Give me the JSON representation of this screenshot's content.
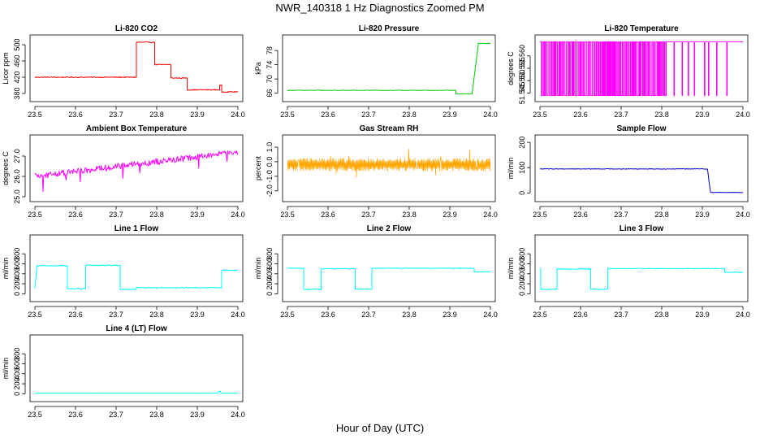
{
  "title": "NWR_140318  1 Hz Diagnostics Zoomed PM",
  "xlabel": "Hour of Day (UTC)",
  "chart_data": [
    {
      "type": "line",
      "title": "Li-820 CO2",
      "ylabel": "Licor ppm",
      "color": "#ff0000",
      "xlim": [
        23.5,
        24.0
      ],
      "ylim": [
        372,
        512
      ],
      "yticks": [
        "380",
        "420",
        "460",
        "500"
      ],
      "xticks": [
        "23.5",
        "23.6",
        "23.7",
        "23.8",
        "23.9",
        "24.0"
      ],
      "series": [
        {
          "noise": 1.2,
          "segments": [
            {
              "x0": 23.5,
              "x1": 23.75,
              "y0": 420,
              "y1": 420
            },
            {
              "x0": 23.75,
              "x1": 23.795,
              "y0": 506,
              "y1": 506
            },
            {
              "x0": 23.795,
              "x1": 23.835,
              "y0": 451,
              "y1": 451
            },
            {
              "x0": 23.835,
              "x1": 23.875,
              "y0": 418,
              "y1": 418
            },
            {
              "x0": 23.875,
              "x1": 23.955,
              "y0": 389,
              "y1": 389
            },
            {
              "x0": 23.955,
              "x1": 23.96,
              "y0": 400,
              "y1": 400
            },
            {
              "x0": 23.96,
              "x1": 24.0,
              "y0": 384,
              "y1": 384
            }
          ]
        }
      ]
    },
    {
      "type": "line",
      "title": "Li-820 Pressure",
      "ylabel": "kPa",
      "color": "#00cc00",
      "xlim": [
        23.5,
        24.0
      ],
      "ylim": [
        65,
        81
      ],
      "yticks": [
        "66",
        "70",
        "74",
        "78"
      ],
      "xticks": [
        "23.5",
        "23.6",
        "23.7",
        "23.8",
        "23.9",
        "24.0"
      ],
      "series": [
        {
          "noise": 0.08,
          "segments": [
            {
              "x0": 23.5,
              "x1": 23.915,
              "y0": 66.8,
              "y1": 66.8
            },
            {
              "x0": 23.915,
              "x1": 23.955,
              "y0": 65.8,
              "y1": 65.8
            },
            {
              "x0": 23.955,
              "x1": 23.97,
              "y0": 66,
              "y1": 79.5
            },
            {
              "x0": 23.97,
              "x1": 24.0,
              "y0": 80,
              "y1": 80
            }
          ]
        }
      ]
    },
    {
      "type": "line",
      "title": "Li-820 Temperature",
      "ylabel": "degrees C",
      "color": "#ff00ff",
      "xlim": [
        23.5,
        24.0
      ],
      "ylim": [
        51.5435,
        51.5665
      ],
      "yticks": [
        "51.545",
        "51.550",
        "51.555",
        "51.560"
      ],
      "xticks": [
        "23.5",
        "23.6",
        "23.7",
        "23.8",
        "23.9",
        "24.0"
      ],
      "series": [
        {
          "mode": "toggle",
          "low": 51.544,
          "high": 51.5657,
          "dense_until": 23.81,
          "spikes": [
            23.83,
            23.85,
            23.865,
            23.88,
            23.905,
            23.915,
            23.935,
            23.96
          ],
          "final": 51.5657
        }
      ]
    },
    {
      "type": "line",
      "title": "Ambient Box Temperature",
      "ylabel": "degrees C",
      "color": "#ff00ff",
      "xlim": [
        23.5,
        24.0
      ],
      "ylim": [
        25.0,
        27.8
      ],
      "yticks": [
        "25.0",
        "26.0",
        "27.0"
      ],
      "xticks": [
        "23.5",
        "23.6",
        "23.7",
        "23.8",
        "23.9",
        "24.0"
      ],
      "series": [
        {
          "noise": 0.15,
          "spike_down": 0.45,
          "segments": [
            {
              "x0": 23.5,
              "x1": 24.0,
              "y0": 26.0,
              "y1": 27.2
            }
          ]
        }
      ]
    },
    {
      "type": "line",
      "title": "Gas Stream RH",
      "ylabel": "percent",
      "color": "#ffa500",
      "xlim": [
        23.5,
        24.0
      ],
      "ylim": [
        -2.4,
        1.5
      ],
      "yticks": [
        "-2.0",
        "-1.0",
        "0.0",
        "1.0"
      ],
      "xticks": [
        "23.5",
        "23.6",
        "23.7",
        "23.8",
        "23.9",
        "24.0"
      ],
      "series": [
        {
          "noise": 0.45,
          "pattern": "hatch",
          "segments": [
            {
              "x0": 23.5,
              "x1": 24.0,
              "y0": -0.2,
              "y1": -0.2
            }
          ]
        }
      ]
    },
    {
      "type": "line",
      "title": "Sample Flow",
      "ylabel": "ml/min",
      "color": "#0000cc",
      "xlim": [
        23.5,
        24.0
      ],
      "ylim": [
        -15,
        210
      ],
      "yticks": [
        "0",
        "100",
        "200"
      ],
      "xticks": [
        "23.5",
        "23.6",
        "23.7",
        "23.8",
        "23.9",
        "24.0"
      ],
      "series": [
        {
          "noise": 1.2,
          "segments": [
            {
              "x0": 23.5,
              "x1": 23.913,
              "y0": 95,
              "y1": 95
            },
            {
              "x0": 23.913,
              "x1": 23.92,
              "y0": 90,
              "y1": 3
            },
            {
              "x0": 23.92,
              "x1": 24.0,
              "y0": 2,
              "y1": 2
            }
          ]
        }
      ]
    },
    {
      "type": "line",
      "title": "Line 1 Flow",
      "ylabel": "ml/min",
      "color": "#00ffff",
      "xlim": [
        23.5,
        24.0
      ],
      "ylim": [
        -60,
        1080
      ],
      "yticks": [
        "0",
        "200",
        "400",
        "600",
        "800"
      ],
      "xticks": [
        "23.5",
        "23.6",
        "23.7",
        "23.8",
        "23.9",
        "24.0"
      ],
      "series": [
        {
          "noise": 10,
          "segments": [
            {
              "x0": 23.5,
              "x1": 23.505,
              "y0": 100,
              "y1": 560
            },
            {
              "x0": 23.505,
              "x1": 23.58,
              "y0": 560,
              "y1": 560
            },
            {
              "x0": 23.58,
              "x1": 23.625,
              "y0": 100,
              "y1": 100
            },
            {
              "x0": 23.625,
              "x1": 23.71,
              "y0": 570,
              "y1": 570
            },
            {
              "x0": 23.71,
              "x1": 23.75,
              "y0": 90,
              "y1": 90
            },
            {
              "x0": 23.75,
              "x1": 23.96,
              "y0": 120,
              "y1": 120
            },
            {
              "x0": 23.96,
              "x1": 24.0,
              "y0": 470,
              "y1": 470
            }
          ]
        }
      ]
    },
    {
      "type": "line",
      "title": "Line 2 Flow",
      "ylabel": "ml/min",
      "color": "#00ffff",
      "xlim": [
        23.5,
        24.0
      ],
      "ylim": [
        -60,
        1080
      ],
      "yticks": [
        "0",
        "200",
        "400",
        "600",
        "800"
      ],
      "xticks": [
        "23.5",
        "23.6",
        "23.7",
        "23.8",
        "23.9",
        "24.0"
      ],
      "series": [
        {
          "noise": 9,
          "segments": [
            {
              "x0": 23.5,
              "x1": 23.54,
              "y0": 510,
              "y1": 510
            },
            {
              "x0": 23.54,
              "x1": 23.583,
              "y0": 90,
              "y1": 90
            },
            {
              "x0": 23.583,
              "x1": 23.667,
              "y0": 500,
              "y1": 500
            },
            {
              "x0": 23.667,
              "x1": 23.708,
              "y0": 90,
              "y1": 90
            },
            {
              "x0": 23.708,
              "x1": 23.96,
              "y0": 510,
              "y1": 510
            },
            {
              "x0": 23.96,
              "x1": 24.0,
              "y0": 440,
              "y1": 440
            }
          ]
        }
      ]
    },
    {
      "type": "line",
      "title": "Line 3 Flow",
      "ylabel": "ml/min",
      "color": "#00ffff",
      "xlim": [
        23.5,
        24.0
      ],
      "ylim": [
        -60,
        1080
      ],
      "yticks": [
        "0",
        "200",
        "400",
        "600",
        "800"
      ],
      "xticks": [
        "23.5",
        "23.6",
        "23.7",
        "23.8",
        "23.9",
        "24.0"
      ],
      "series": [
        {
          "noise": 9,
          "segments": [
            {
              "x0": 23.5,
              "x1": 23.502,
              "y0": 500,
              "y1": 500
            },
            {
              "x0": 23.502,
              "x1": 23.542,
              "y0": 90,
              "y1": 90
            },
            {
              "x0": 23.542,
              "x1": 23.625,
              "y0": 495,
              "y1": 495
            },
            {
              "x0": 23.625,
              "x1": 23.667,
              "y0": 90,
              "y1": 90
            },
            {
              "x0": 23.667,
              "x1": 23.955,
              "y0": 505,
              "y1": 505
            },
            {
              "x0": 23.955,
              "x1": 24.0,
              "y0": 430,
              "y1": 430
            }
          ]
        }
      ]
    },
    {
      "type": "line",
      "title": "Line 4 (LT) Flow",
      "ylabel": "ml/min",
      "color": "#00ffff",
      "xlim": [
        23.5,
        24.0
      ],
      "ylim": [
        -60,
        1080
      ],
      "yticks": [
        "0",
        "200",
        "400",
        "600",
        "800"
      ],
      "xticks": [
        "23.5",
        "23.6",
        "23.7",
        "23.8",
        "23.9",
        "24.0"
      ],
      "series": [
        {
          "noise": 1.5,
          "blip_at": 23.955,
          "segments": [
            {
              "x0": 23.5,
              "x1": 24.0,
              "y0": 12,
              "y1": 12
            }
          ]
        }
      ]
    }
  ]
}
